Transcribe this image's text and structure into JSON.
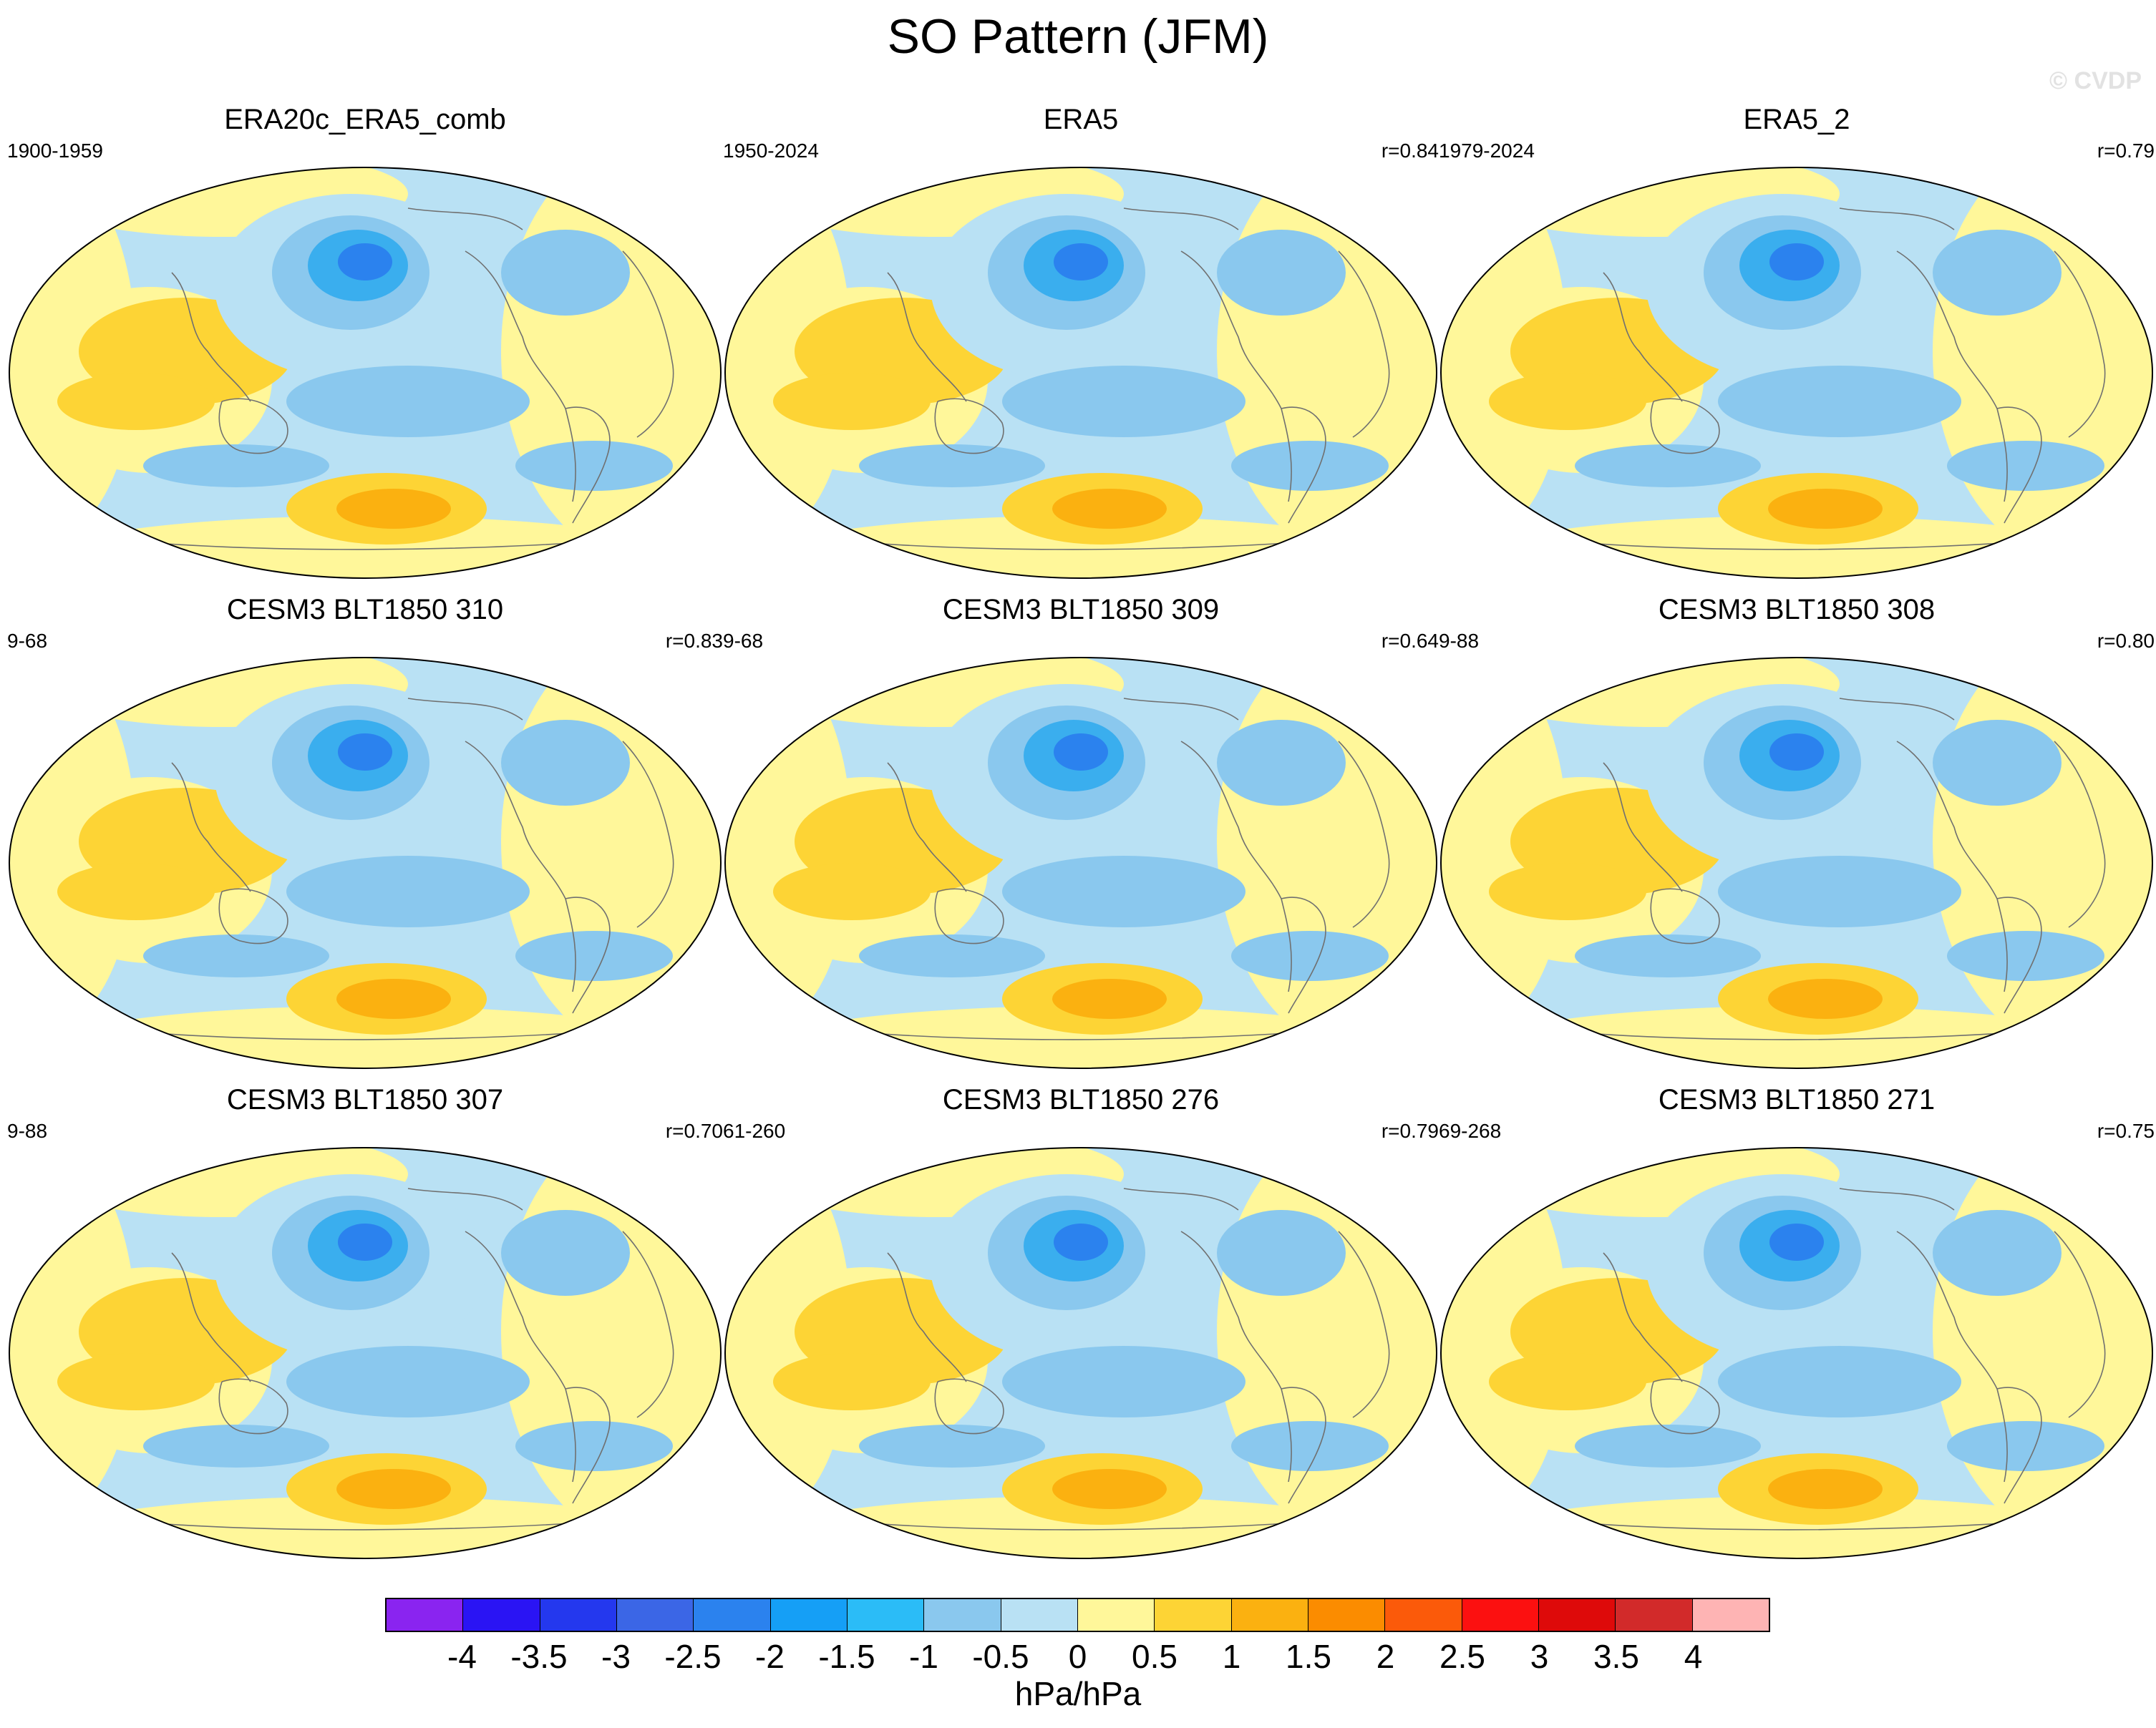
{
  "title": "SO Pattern (JFM)",
  "watermark": "© CVDP",
  "colors": {
    "ocean_base": "#b9e1f4",
    "land_line": "#707070",
    "neg_weak": "#8ac8ee",
    "neg_mid": "#3aaeee",
    "neg_strong": "#2b82ee",
    "neg_core": "#1f4fd8",
    "pos_weak": "#fff79a",
    "pos_mid": "#fdd435",
    "pos_strong": "#fbb110",
    "pos_core": "#f98a0a"
  },
  "panels": [
    {
      "title": "ERA20c_ERA5_comb",
      "period": "1900-1959",
      "r": ""
    },
    {
      "title": "ERA5",
      "period": "1950-2024",
      "r": "r=0.84"
    },
    {
      "title": "ERA5_2",
      "period": "1979-2024",
      "r": "r=0.79"
    },
    {
      "title": "CESM3 BLT1850 310",
      "period": "9-68",
      "r": "r=0.83"
    },
    {
      "title": "CESM3 BLT1850 309",
      "period": "9-68",
      "r": "r=0.64"
    },
    {
      "title": "CESM3 BLT1850 308",
      "period": "9-88",
      "r": "r=0.80"
    },
    {
      "title": "CESM3 BLT1850 307",
      "period": "9-88",
      "r": "r=0.70"
    },
    {
      "title": "CESM3 BLT1850 276",
      "period": "61-260",
      "r": "r=0.79"
    },
    {
      "title": "CESM3 BLT1850 271",
      "period": "69-268",
      "r": "r=0.75"
    }
  ],
  "colorbar": {
    "units": "hPa/hPa",
    "ticks": [
      "-4",
      "-3.5",
      "-3",
      "-2.5",
      "-2",
      "-1.5",
      "-1",
      "-0.5",
      "0",
      "0.5",
      "1",
      "1.5",
      "2",
      "2.5",
      "3",
      "3.5",
      "4"
    ],
    "colors": [
      "#8a24f0",
      "#2a14f4",
      "#2438ee",
      "#3b66e6",
      "#2b82ee",
      "#159ff6",
      "#2bbcf7",
      "#8ac8ee",
      "#b9e1f4",
      "#fff79a",
      "#fdd435",
      "#fbb110",
      "#fb8c00",
      "#fb5a0a",
      "#fc1010",
      "#de0a0a",
      "#d22a2a",
      "#feb4b4"
    ]
  }
}
